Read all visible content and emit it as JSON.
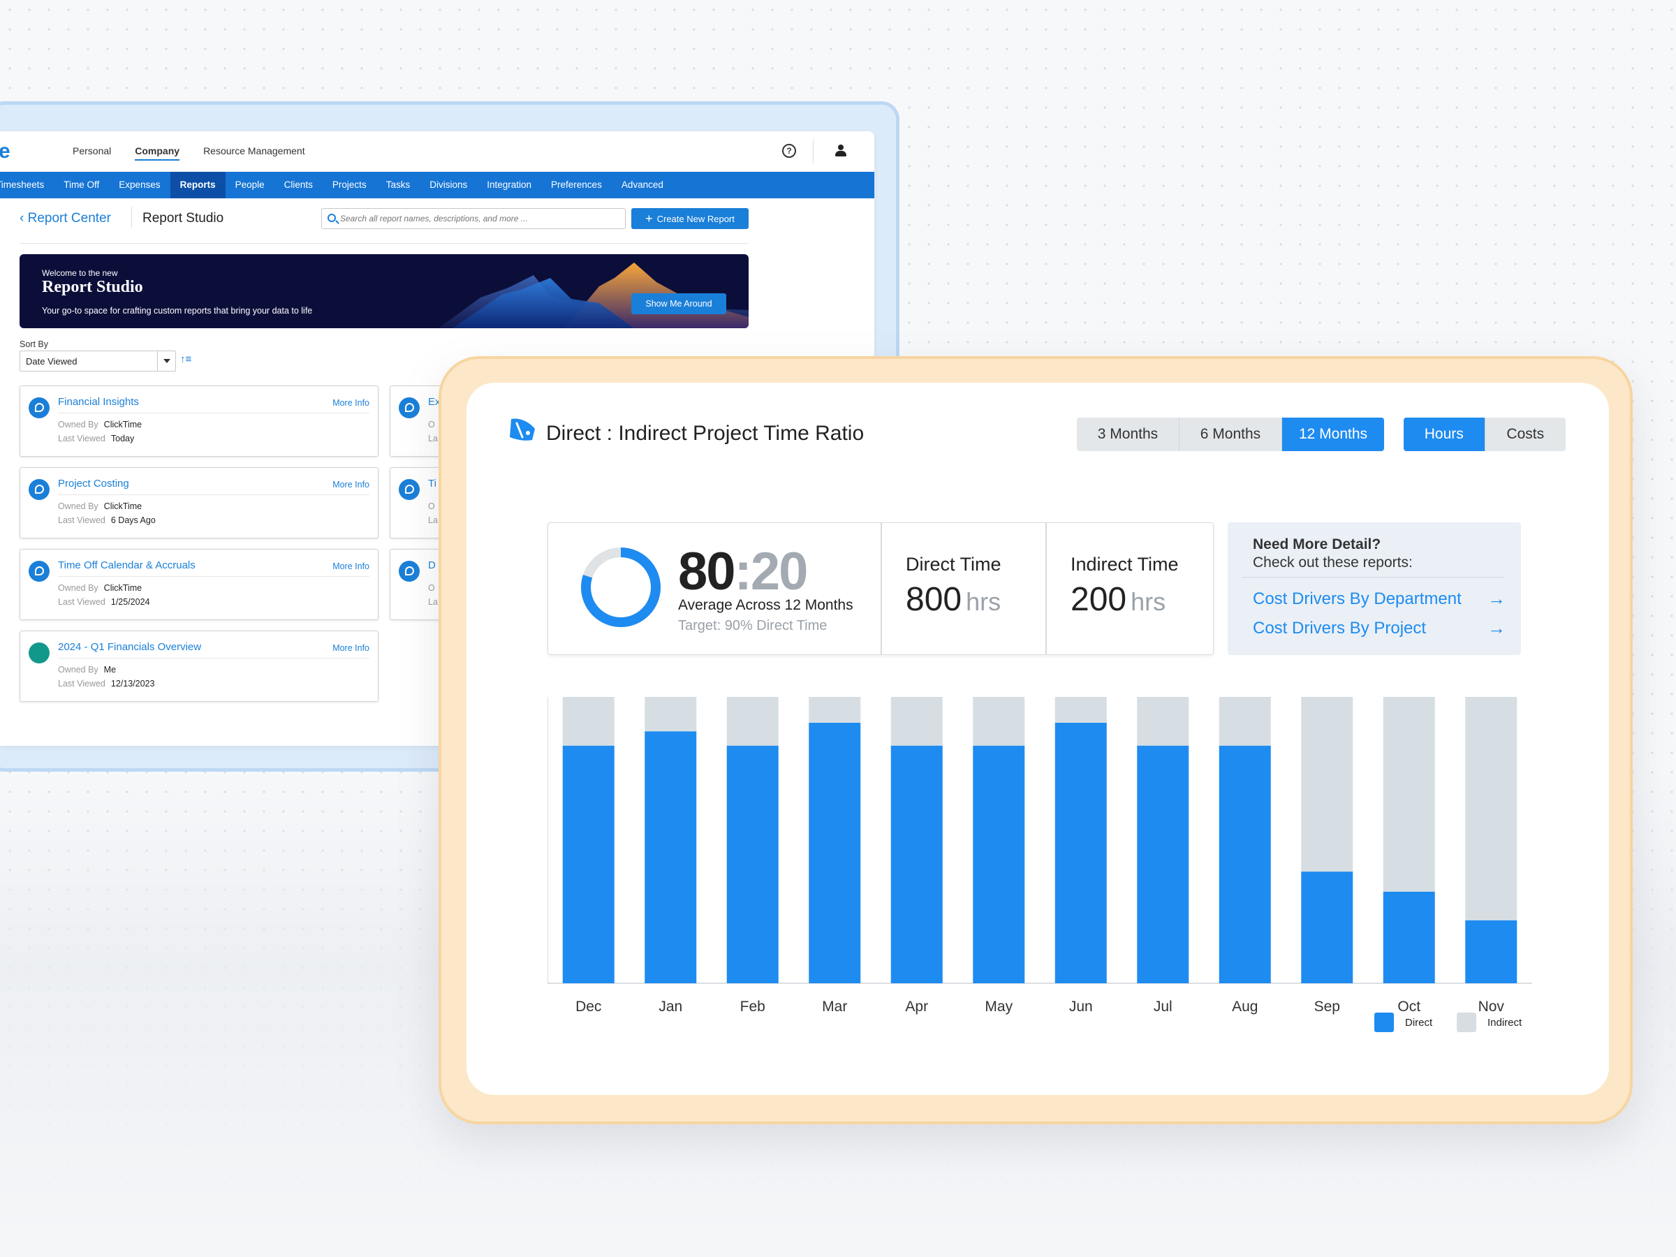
{
  "back_window": {
    "brand_letter": "e",
    "top_nav": [
      "Personal",
      "Company",
      "Resource Management"
    ],
    "top_nav_active": "Company",
    "help_icon": "?",
    "sub_nav": [
      "Timesheets",
      "Time Off",
      "Expenses",
      "Reports",
      "People",
      "Clients",
      "Projects",
      "Tasks",
      "Divisions",
      "Integration",
      "Preferences",
      "Advanced"
    ],
    "sub_nav_active": "Reports",
    "breadcrumb_back": "Report Center",
    "breadcrumb_current": "Report Studio",
    "search_placeholder": "Search all report names, descriptions, and more ...",
    "create_button": "Create New Report",
    "banner": {
      "small": "Welcome to the new",
      "title": "Report Studio",
      "subtitle": "Your go-to space for crafting custom reports that bring your data to life",
      "button": "Show Me Around"
    },
    "sort_label": "Sort By",
    "sort_value": "Date Viewed",
    "cards": [
      {
        "title": "Financial Insights",
        "more": "More Info",
        "owned_label": "Owned By",
        "owner": "ClickTime",
        "viewed_label": "Last Viewed",
        "viewed": "Today",
        "icon": "blue"
      },
      {
        "title": "Project Costing",
        "more": "More Info",
        "owned_label": "Owned By",
        "owner": "ClickTime",
        "viewed_label": "Last Viewed",
        "viewed": "6 Days Ago",
        "icon": "blue"
      },
      {
        "title": "Time Off Calendar & Accruals",
        "more": "More Info",
        "owned_label": "Owned By",
        "owner": "ClickTime",
        "viewed_label": "Last Viewed",
        "viewed": "1/25/2024",
        "icon": "blue"
      },
      {
        "title": "2024 - Q1 Financials Overview",
        "more": "More Info",
        "owned_label": "Owned By",
        "owner": "Me",
        "viewed_label": "Last Viewed",
        "viewed": "12/13/2023",
        "icon": "teal"
      }
    ],
    "cards_right_partial": [
      {
        "title": "Ex",
        "l1": "O",
        "l2": "La"
      },
      {
        "title": "Ti",
        "l1": "O",
        "l2": "La"
      },
      {
        "title": "D",
        "l1": "O",
        "l2": "La"
      }
    ]
  },
  "panel": {
    "title": "Direct : Indirect Project Time Ratio",
    "range_options": [
      "3 Months",
      "6 Months",
      "12 Months"
    ],
    "range_active": "12 Months",
    "unit_options": [
      "Hours",
      "Costs"
    ],
    "unit_active": "Hours",
    "ratio_direct": "80",
    "ratio_sep": ":",
    "ratio_indirect": "20",
    "donut_direct_fraction": 0.8,
    "ratio_caption": "Average Across 12 Months",
    "ratio_target": "Target: 90% Direct Time",
    "direct_label": "Direct Time",
    "direct_value": "800",
    "direct_unit": "hrs",
    "indirect_label": "Indirect Time",
    "indirect_value": "200",
    "indirect_unit": "hrs",
    "detail_heading": "Need More Detail?",
    "detail_sub": "Check out these reports:",
    "detail_links": [
      "Cost Drivers By Department",
      "Cost Drivers By Project"
    ],
    "colors": {
      "direct": "#1e8bf0",
      "indirect": "#d6dee3",
      "accent": "#1e8bf0"
    }
  },
  "chart_data": {
    "type": "bar",
    "stacked": true,
    "categories": [
      "Dec",
      "Jan",
      "Feb",
      "Mar",
      "Apr",
      "May",
      "Jun",
      "Jul",
      "Aug",
      "Sep",
      "Oct",
      "Nov"
    ],
    "series": [
      {
        "name": "Direct",
        "values": [
          83,
          88,
          83,
          91,
          83,
          83,
          91,
          83,
          83,
          39,
          32,
          22
        ]
      },
      {
        "name": "Indirect",
        "values": [
          17,
          12,
          17,
          9,
          17,
          17,
          9,
          17,
          17,
          61,
          68,
          78
        ]
      }
    ],
    "ylim": [
      0,
      100
    ],
    "grid": false,
    "legend": "bottom-right"
  }
}
